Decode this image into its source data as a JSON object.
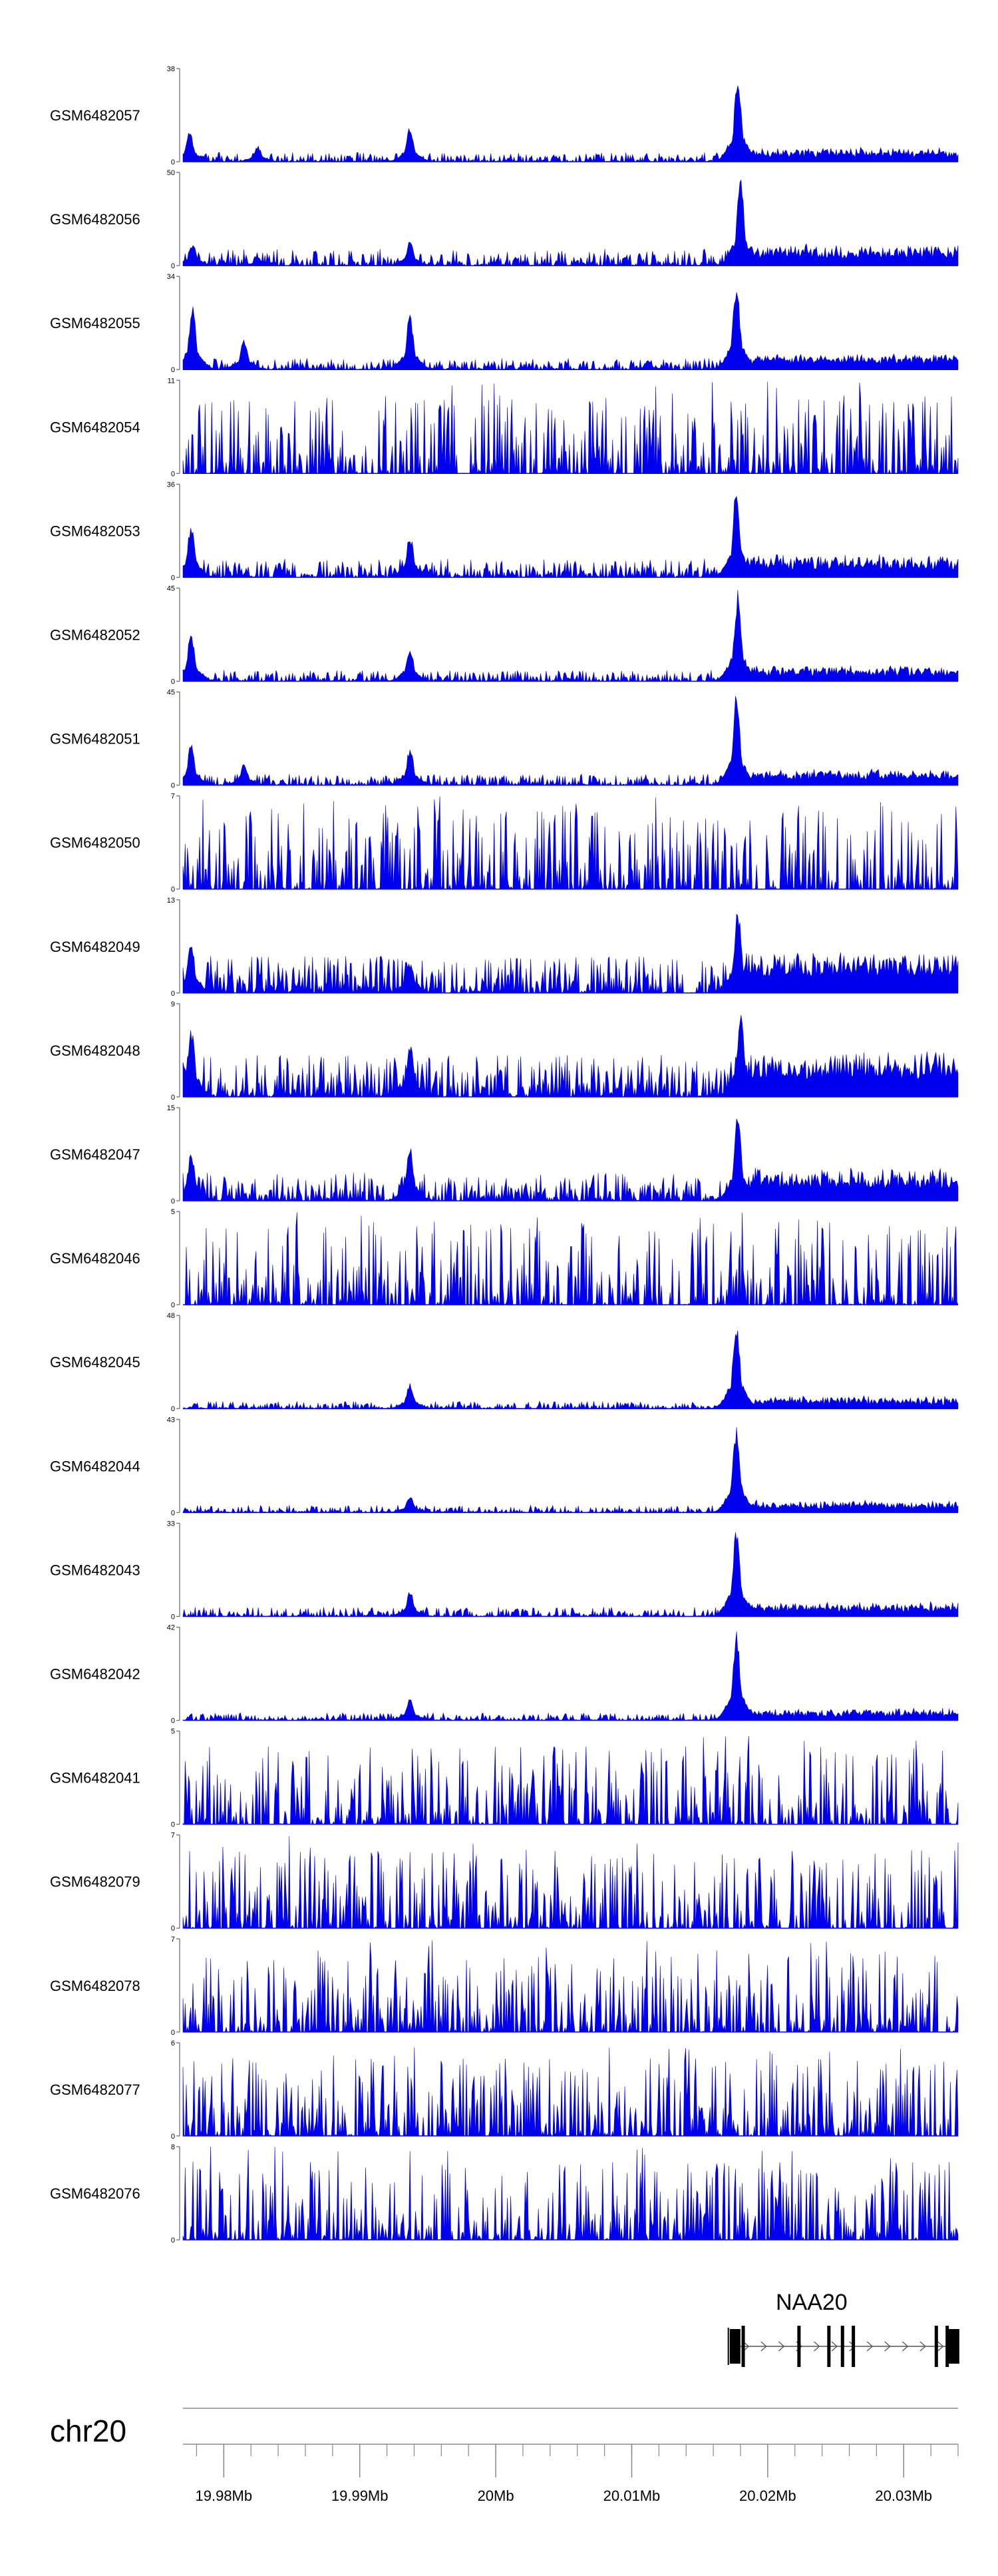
{
  "chart_data": {
    "type": "area",
    "chromosome": "chr20",
    "x_range": [
      19.977,
      20.034
    ],
    "x_unit": "Mb",
    "x_ticks": [
      {
        "pos": 19.98,
        "label": "19.98Mb"
      },
      {
        "pos": 19.99,
        "label": "19.99Mb"
      },
      {
        "pos": 20.0,
        "label": "20Mb"
      },
      {
        "pos": 20.01,
        "label": "20.01Mb"
      },
      {
        "pos": 20.02,
        "label": "20.02Mb"
      },
      {
        "pos": 20.03,
        "label": "20.03Mb"
      }
    ],
    "color": "#0000ee",
    "tracks": [
      {
        "name": "GSM6482057",
        "ymax": 38,
        "ymin": 0,
        "kind": "chip",
        "peaks": [
          [
            19.9775,
            0.35
          ],
          [
            19.9825,
            0.18
          ],
          [
            19.9937,
            0.38
          ],
          [
            20.0178,
            1.0
          ]
        ],
        "bg": 0.1
      },
      {
        "name": "GSM6482056",
        "ymax": 50,
        "ymin": 0,
        "kind": "chip",
        "peaks": [
          [
            19.9777,
            0.25
          ],
          [
            19.9825,
            0.1
          ],
          [
            19.9937,
            0.28
          ],
          [
            20.018,
            1.0
          ]
        ],
        "bg": 0.18
      },
      {
        "name": "GSM6482055",
        "ymax": 34,
        "ymin": 0,
        "kind": "chip",
        "peaks": [
          [
            19.9777,
            0.7
          ],
          [
            19.9815,
            0.35
          ],
          [
            19.9937,
            0.62
          ],
          [
            20.0112,
            0.1
          ],
          [
            20.0177,
            1.0
          ]
        ],
        "bg": 0.12
      },
      {
        "name": "GSM6482054",
        "ymax": 11,
        "ymin": 0,
        "kind": "noise",
        "peaks": [],
        "bg": 0.55
      },
      {
        "name": "GSM6482053",
        "ymax": 36,
        "ymin": 0,
        "kind": "chip",
        "peaks": [
          [
            19.9776,
            0.6
          ],
          [
            19.9937,
            0.48
          ],
          [
            20.0177,
            1.0
          ]
        ],
        "bg": 0.2
      },
      {
        "name": "GSM6482052",
        "ymax": 45,
        "ymin": 0,
        "kind": "chip",
        "peaks": [
          [
            19.9776,
            0.55
          ],
          [
            19.9937,
            0.38
          ],
          [
            20.0178,
            1.0
          ]
        ],
        "bg": 0.12
      },
      {
        "name": "GSM6482051",
        "ymax": 45,
        "ymin": 0,
        "kind": "chip",
        "peaks": [
          [
            19.9776,
            0.45
          ],
          [
            19.9815,
            0.25
          ],
          [
            19.9937,
            0.42
          ],
          [
            20.0177,
            1.0
          ]
        ],
        "bg": 0.12
      },
      {
        "name": "GSM6482050",
        "ymax": 7,
        "ymin": 0,
        "kind": "noise",
        "peaks": [],
        "bg": 0.55
      },
      {
        "name": "GSM6482049",
        "ymax": 13,
        "ymin": 0,
        "kind": "chip",
        "peaks": [
          [
            19.9776,
            0.55
          ],
          [
            19.9937,
            0.35
          ],
          [
            20.0178,
            0.95
          ]
        ],
        "bg": 0.4
      },
      {
        "name": "GSM6482048",
        "ymax": 9,
        "ymin": 0,
        "kind": "chip",
        "peaks": [
          [
            19.9776,
            0.8
          ],
          [
            19.9937,
            0.6
          ],
          [
            20.018,
            0.95
          ]
        ],
        "bg": 0.45
      },
      {
        "name": "GSM6482047",
        "ymax": 15,
        "ymin": 0,
        "kind": "chip",
        "peaks": [
          [
            19.9776,
            0.55
          ],
          [
            19.9937,
            0.6
          ],
          [
            20.0178,
            0.95
          ]
        ],
        "bg": 0.3
      },
      {
        "name": "GSM6482046",
        "ymax": 5,
        "ymin": 0,
        "kind": "noise",
        "peaks": [],
        "bg": 0.6
      },
      {
        "name": "GSM6482045",
        "ymax": 48,
        "ymin": 0,
        "kind": "chip",
        "peaks": [
          [
            19.9937,
            0.28
          ],
          [
            20.0177,
            1.0
          ]
        ],
        "bg": 0.08
      },
      {
        "name": "GSM6482044",
        "ymax": 43,
        "ymin": 0,
        "kind": "chip",
        "peaks": [
          [
            19.9937,
            0.2
          ],
          [
            20.0177,
            1.0
          ]
        ],
        "bg": 0.08
      },
      {
        "name": "GSM6482043",
        "ymax": 33,
        "ymin": 0,
        "kind": "chip",
        "peaks": [
          [
            19.9937,
            0.28
          ],
          [
            20.0177,
            1.0
          ]
        ],
        "bg": 0.1
      },
      {
        "name": "GSM6482042",
        "ymax": 42,
        "ymin": 0,
        "kind": "chip",
        "peaks": [
          [
            19.9937,
            0.25
          ],
          [
            20.0177,
            1.0
          ]
        ],
        "bg": 0.08
      },
      {
        "name": "GSM6482041",
        "ymax": 5,
        "ymin": 0,
        "kind": "noise",
        "peaks": [],
        "bg": 0.55
      },
      {
        "name": "GSM6482079",
        "ymax": 7,
        "ymin": 0,
        "kind": "noise",
        "peaks": [],
        "bg": 0.55
      },
      {
        "name": "GSM6482078",
        "ymax": 7,
        "ymin": 0,
        "kind": "noise",
        "peaks": [],
        "bg": 0.55
      },
      {
        "name": "GSM6482077",
        "ymax": 6,
        "ymin": 0,
        "kind": "noise",
        "peaks": [],
        "bg": 0.55
      },
      {
        "name": "GSM6482076",
        "ymax": 8,
        "ymin": 0,
        "kind": "noise",
        "peaks": [],
        "bg": 0.55
      }
    ],
    "gene": {
      "name": "NAA20",
      "start": 20.0173,
      "end": 20.034,
      "exons": [
        20.0176,
        20.0182,
        20.0223,
        20.0245,
        20.0255,
        20.0263,
        20.0324,
        20.0332,
        20.0337
      ]
    }
  }
}
